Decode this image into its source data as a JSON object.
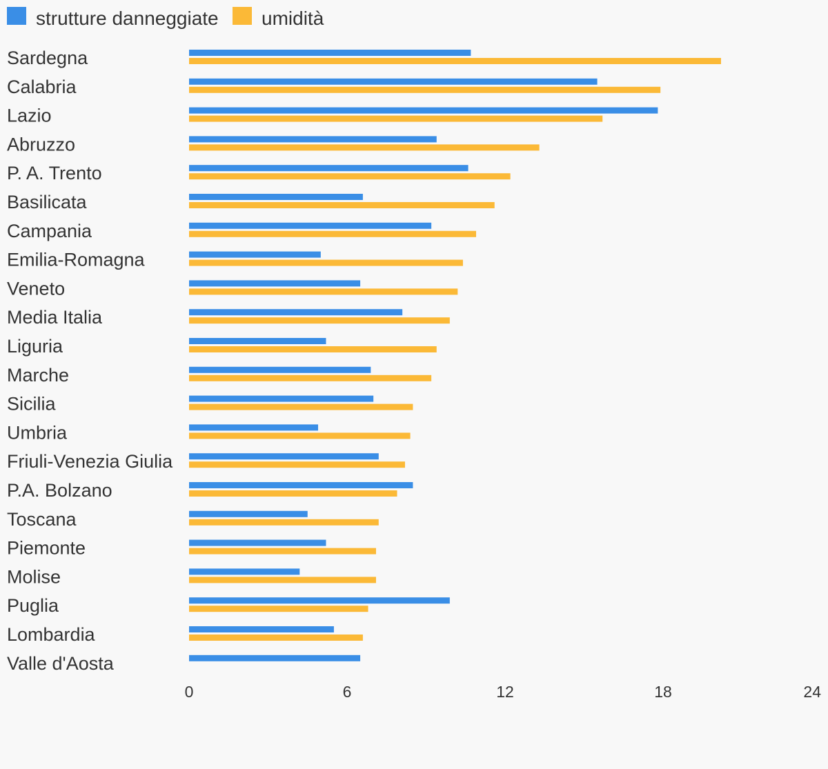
{
  "chart_data": {
    "type": "bar",
    "orientation": "horizontal",
    "title": "",
    "xlabel": "",
    "ylabel": "",
    "xlim": [
      0,
      24
    ],
    "x_ticks": [
      "0",
      "6",
      "12",
      "18",
      "24"
    ],
    "grid": false,
    "legend_position": "top-left",
    "categories": [
      "Sardegna",
      "Calabria",
      "Lazio",
      "Abruzzo",
      "P. A. Trento",
      "Basilicata",
      "Campania",
      "Emilia-Romagna",
      "Veneto",
      "Media Italia",
      "Liguria",
      "Marche",
      "Sicilia",
      "Umbria",
      "Friuli-Venezia Giulia",
      "P.A. Bolzano",
      "Toscana",
      "Piemonte",
      "Molise",
      "Puglia",
      "Lombardia",
      "Valle d'Aosta"
    ],
    "series": [
      {
        "name": "strutture danneggiate",
        "color": "#3a8ee6",
        "values": [
          10.7,
          15.5,
          17.8,
          9.4,
          10.6,
          6.6,
          9.2,
          5.0,
          6.5,
          8.1,
          5.2,
          6.9,
          7.0,
          4.9,
          7.2,
          8.5,
          4.5,
          5.2,
          4.2,
          9.9,
          5.5,
          6.5
        ]
      },
      {
        "name": "umidità",
        "color": "#fbb937",
        "values": [
          20.2,
          17.9,
          15.7,
          13.3,
          12.2,
          11.6,
          10.9,
          10.4,
          10.2,
          9.9,
          9.4,
          9.2,
          8.5,
          8.4,
          8.2,
          7.9,
          7.2,
          7.1,
          7.1,
          6.8,
          6.6,
          null
        ]
      }
    ]
  }
}
